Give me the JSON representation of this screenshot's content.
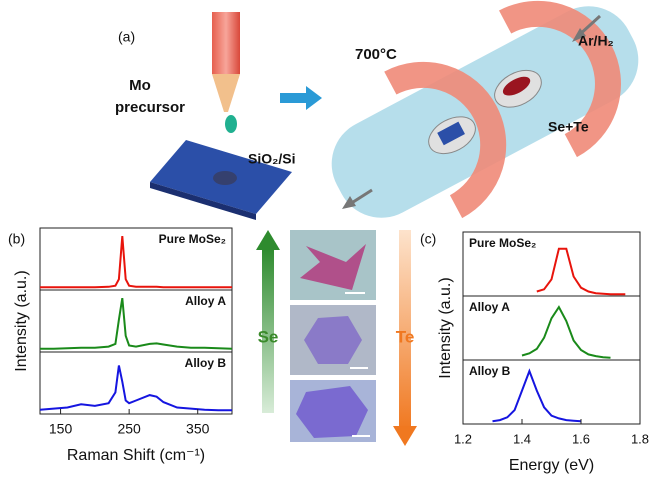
{
  "diagram": {
    "panel_a": "(a)",
    "mo": "Mo",
    "precursor": "precursor",
    "substrate": "SiO₂/Si",
    "temperature": "700°C",
    "gas": "Ar/H₂",
    "source": "Se+Te",
    "panel_b": "(b)",
    "panel_c": "(c)",
    "se_arrow": "Se",
    "te_arrow": "Te"
  },
  "chart_data": [
    {
      "type": "line",
      "xlabel": "Raman Shift (cm⁻¹)",
      "ylabel": "Intensity (a.u.)",
      "x": [
        120,
        140,
        160,
        180,
        200,
        220,
        230,
        235,
        240,
        245,
        250,
        260,
        280,
        290,
        300,
        320,
        340,
        360,
        380,
        400
      ],
      "xlim": [
        120,
        400
      ],
      "xticks": [
        150,
        250,
        350
      ],
      "ylim": [
        0,
        1.15
      ],
      "series": [
        {
          "name": "Pure MoSe₂",
          "color": "#e8140c",
          "values": [
            0.05,
            0.05,
            0.05,
            0.05,
            0.05,
            0.06,
            0.08,
            0.2,
            1.0,
            0.2,
            0.08,
            0.06,
            0.06,
            0.06,
            0.05,
            0.05,
            0.05,
            0.05,
            0.05,
            0.05
          ]
        },
        {
          "name": "Alloy A",
          "color": "#1a8a1a",
          "values": [
            0.06,
            0.06,
            0.07,
            0.08,
            0.08,
            0.1,
            0.15,
            0.6,
            1.0,
            0.3,
            0.12,
            0.1,
            0.15,
            0.16,
            0.14,
            0.1,
            0.08,
            0.08,
            0.07,
            0.06
          ]
        },
        {
          "name": "Alloy B",
          "color": "#1515e0",
          "values": [
            0.08,
            0.1,
            0.12,
            0.18,
            0.15,
            0.2,
            0.4,
            0.9,
            0.6,
            0.25,
            0.2,
            0.25,
            0.35,
            0.32,
            0.22,
            0.12,
            0.1,
            0.08,
            0.07,
            0.07
          ]
        }
      ]
    },
    {
      "type": "line",
      "xlabel": "Energy (eV)",
      "ylabel": "Intensity (a.u.)",
      "x": [
        1.3,
        1.325,
        1.35,
        1.375,
        1.4,
        1.425,
        1.45,
        1.475,
        1.5,
        1.525,
        1.55,
        1.575,
        1.6,
        1.625,
        1.65,
        1.675,
        1.7,
        1.725,
        1.75
      ],
      "xlim": [
        1.2,
        1.8
      ],
      "xticks": [
        1.2,
        1.4,
        1.6,
        1.8
      ],
      "ylim": [
        0,
        1.15
      ],
      "series": [
        {
          "name": "Pure MoSe₂",
          "color": "#e8140c",
          "values": [
            null,
            null,
            null,
            null,
            null,
            null,
            0.08,
            0.12,
            0.3,
            0.85,
            0.85,
            0.35,
            0.15,
            0.08,
            0.05,
            0.04,
            0.03,
            0.03,
            0.03
          ]
        },
        {
          "name": "Alloy A",
          "color": "#1a8a1a",
          "values": [
            null,
            null,
            null,
            null,
            0.08,
            0.12,
            0.2,
            0.4,
            0.75,
            0.95,
            0.7,
            0.35,
            0.18,
            0.1,
            0.07,
            0.05,
            0.04,
            null,
            null
          ]
        },
        {
          "name": "Alloy B",
          "color": "#1515e0",
          "values": [
            0.05,
            0.07,
            0.12,
            0.25,
            0.6,
            0.95,
            0.6,
            0.3,
            0.15,
            0.1,
            0.07,
            0.06,
            0.05,
            null,
            null,
            null,
            null,
            null,
            null
          ]
        }
      ]
    }
  ]
}
